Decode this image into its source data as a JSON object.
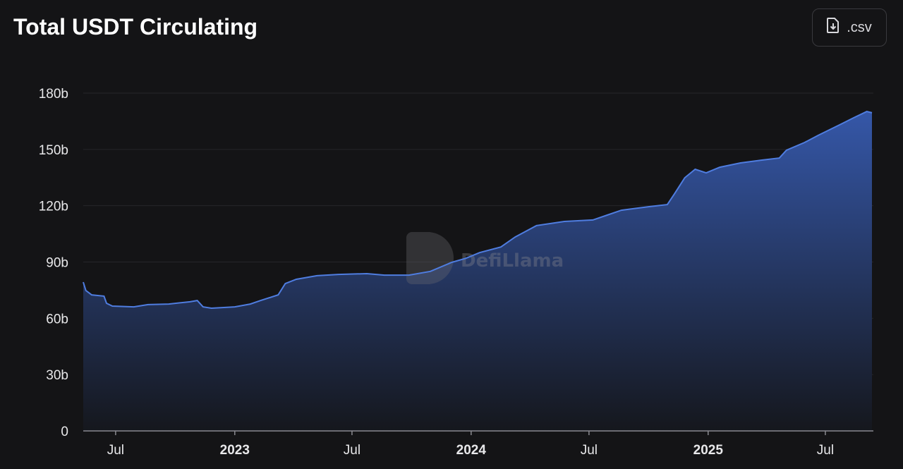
{
  "title": "Total USDT Circulating",
  "csv_button": {
    "label": ".csv",
    "icon": "file-download-icon"
  },
  "watermark": "DefiLlama",
  "colors": {
    "background": "#141416",
    "line": "#4f7de0",
    "fill_top": "#3557a8",
    "fill_bottom": "#15171d",
    "text": "#e8e8ea"
  },
  "chart_data": {
    "type": "area",
    "title": "Total USDT Circulating",
    "xlabel": "",
    "ylabel": "",
    "xlim": [
      "2022-05-12",
      "2025-09-11"
    ],
    "ylim": [
      0,
      180
    ],
    "yunit": "b",
    "grid": true,
    "y_ticks": [
      {
        "value": 0,
        "label": "0"
      },
      {
        "value": 30,
        "label": "30b"
      },
      {
        "value": 60,
        "label": "60b"
      },
      {
        "value": 90,
        "label": "90b"
      },
      {
        "value": 120,
        "label": "120b"
      },
      {
        "value": 150,
        "label": "150b"
      },
      {
        "value": 180,
        "label": "180b"
      }
    ],
    "x_ticks": [
      {
        "date": "2022-07-01",
        "label": "Jul",
        "year": false
      },
      {
        "date": "2023-01-01",
        "label": "2023",
        "year": true
      },
      {
        "date": "2023-07-01",
        "label": "Jul",
        "year": false
      },
      {
        "date": "2024-01-01",
        "label": "2024",
        "year": true
      },
      {
        "date": "2024-07-01",
        "label": "Jul",
        "year": false
      },
      {
        "date": "2025-01-01",
        "label": "2025",
        "year": true
      },
      {
        "date": "2025-07-01",
        "label": "Jul",
        "year": false
      }
    ],
    "points": [
      [
        "2022-05-12",
        79.3
      ],
      [
        "2022-05-16",
        74.8
      ],
      [
        "2022-05-25",
        72.5
      ],
      [
        "2022-06-13",
        71.8
      ],
      [
        "2022-06-17",
        68.0
      ],
      [
        "2022-06-26",
        66.5
      ],
      [
        "2022-07-29",
        66.1
      ],
      [
        "2022-08-20",
        67.3
      ],
      [
        "2022-09-21",
        67.6
      ],
      [
        "2022-10-24",
        68.8
      ],
      [
        "2022-11-04",
        69.5
      ],
      [
        "2022-11-13",
        66.1
      ],
      [
        "2022-11-26",
        65.4
      ],
      [
        "2023-01-01",
        66.1
      ],
      [
        "2023-01-25",
        67.6
      ],
      [
        "2023-02-10",
        69.5
      ],
      [
        "2023-03-09",
        72.5
      ],
      [
        "2023-03-20",
        78.5
      ],
      [
        "2023-04-06",
        80.8
      ],
      [
        "2023-05-08",
        82.7
      ],
      [
        "2023-06-10",
        83.4
      ],
      [
        "2023-07-24",
        83.8
      ],
      [
        "2023-08-20",
        83.0
      ],
      [
        "2023-09-27",
        83.0
      ],
      [
        "2023-10-30",
        85.0
      ],
      [
        "2023-12-02",
        89.8
      ],
      [
        "2023-12-24",
        92.0
      ],
      [
        "2024-01-14",
        95.0
      ],
      [
        "2024-02-16",
        98.0
      ],
      [
        "2024-03-09",
        103.3
      ],
      [
        "2024-04-11",
        109.4
      ],
      [
        "2024-05-24",
        111.6
      ],
      [
        "2024-07-07",
        112.4
      ],
      [
        "2024-07-29",
        115.0
      ],
      [
        "2024-08-20",
        117.6
      ],
      [
        "2024-10-02",
        119.5
      ],
      [
        "2024-10-30",
        120.6
      ],
      [
        "2024-11-10",
        126.3
      ],
      [
        "2024-11-26",
        134.9
      ],
      [
        "2024-12-12",
        139.4
      ],
      [
        "2024-12-29",
        137.5
      ],
      [
        "2025-01-19",
        140.5
      ],
      [
        "2025-02-20",
        142.8
      ],
      [
        "2025-03-25",
        144.3
      ],
      [
        "2025-04-21",
        145.4
      ],
      [
        "2025-05-02",
        149.6
      ],
      [
        "2025-05-30",
        153.7
      ],
      [
        "2025-06-20",
        157.5
      ],
      [
        "2025-07-23",
        163.1
      ],
      [
        "2025-08-14",
        166.9
      ],
      [
        "2025-09-03",
        170.2
      ],
      [
        "2025-09-11",
        169.5
      ]
    ]
  }
}
